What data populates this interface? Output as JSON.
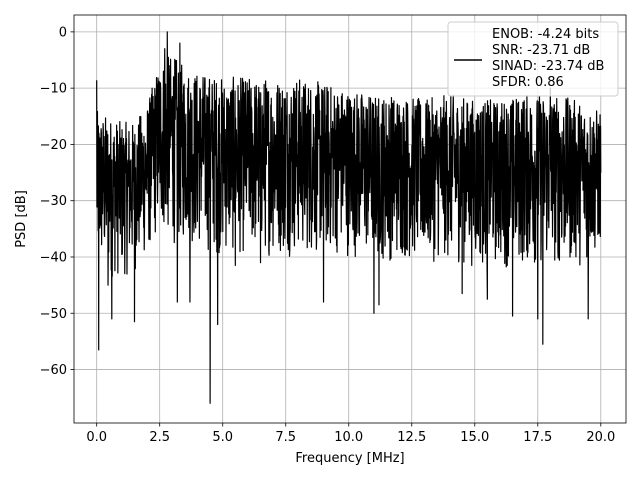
{
  "chart_data": {
    "type": "line",
    "xlabel": "Frequency [MHz]",
    "ylabel": "PSD [dB]",
    "xlim": [
      -0.9,
      21.0
    ],
    "ylim": [
      -69.5,
      3.0
    ],
    "xticks": [
      0.0,
      2.5,
      5.0,
      7.5,
      10.0,
      12.5,
      15.0,
      17.5,
      20.0
    ],
    "xtick_labels": [
      "0.0",
      "2.5",
      "5.0",
      "7.5",
      "10.0",
      "12.5",
      "15.0",
      "17.5",
      "20.0"
    ],
    "yticks": [
      0,
      -10,
      -20,
      -30,
      -40,
      -50,
      -60
    ],
    "ytick_labels": [
      "0",
      "−10",
      "−20",
      "−30",
      "−40",
      "−50",
      "−60"
    ],
    "grid": true,
    "legend_position": "top-right",
    "legend_lines": [
      "ENOB: -4.24 bits",
      "SNR: -23.71 dB",
      "SINAD: -23.74 dB",
      "SFDR: 0.86"
    ],
    "line_color": "#000000",
    "series": [
      {
        "name": "ENOB: -4.24 bits\nSNR: -23.71 dB\nSINAD: -23.74 dB\nSFDR: 0.86",
        "x_range": [
          0.0,
          20.0
        ],
        "approx_points": 2048,
        "notable_points": [
          {
            "x": 0.0,
            "y": -8.6
          },
          {
            "x": 0.08,
            "y": -56.5
          },
          {
            "x": 0.45,
            "y": -45.0
          },
          {
            "x": 0.6,
            "y": -51.0
          },
          {
            "x": 1.5,
            "y": -51.5
          },
          {
            "x": 2.7,
            "y": -3.0
          },
          {
            "x": 2.8,
            "y": 0.0
          },
          {
            "x": 3.3,
            "y": -2.0
          },
          {
            "x": 3.2,
            "y": -48.0
          },
          {
            "x": 3.7,
            "y": -48.0
          },
          {
            "x": 4.5,
            "y": -66.0
          },
          {
            "x": 4.8,
            "y": -52.0
          },
          {
            "x": 5.5,
            "y": -41.5
          },
          {
            "x": 6.5,
            "y": -41.0
          },
          {
            "x": 9.0,
            "y": -48.0
          },
          {
            "x": 11.0,
            "y": -50.0
          },
          {
            "x": 11.2,
            "y": -48.5
          },
          {
            "x": 14.5,
            "y": -46.5
          },
          {
            "x": 15.5,
            "y": -47.5
          },
          {
            "x": 16.5,
            "y": -50.5
          },
          {
            "x": 17.5,
            "y": -51.0
          },
          {
            "x": 17.7,
            "y": -55.5
          },
          {
            "x": 19.5,
            "y": -51.0
          },
          {
            "x": 18.0,
            "y": -10.0
          },
          {
            "x": 20.0,
            "y": -25.0
          }
        ],
        "envelope": [
          {
            "x": 0.0,
            "upper": -14,
            "lower": -43
          },
          {
            "x": 0.5,
            "upper": -15,
            "lower": -44
          },
          {
            "x": 1.0,
            "upper": -16,
            "lower": -44
          },
          {
            "x": 1.5,
            "upper": -16,
            "lower": -43
          },
          {
            "x": 2.0,
            "upper": -13,
            "lower": -40
          },
          {
            "x": 2.5,
            "upper": -5,
            "lower": -36
          },
          {
            "x": 3.0,
            "upper": -4,
            "lower": -38
          },
          {
            "x": 3.5,
            "upper": -6,
            "lower": -38
          },
          {
            "x": 4.0,
            "upper": -7,
            "lower": -39
          },
          {
            "x": 5.0,
            "upper": -8,
            "lower": -40
          },
          {
            "x": 6.0,
            "upper": -8,
            "lower": -40
          },
          {
            "x": 7.0,
            "upper": -8,
            "lower": -40
          },
          {
            "x": 8.0,
            "upper": -8,
            "lower": -40
          },
          {
            "x": 9.0,
            "upper": -9,
            "lower": -40
          },
          {
            "x": 10.0,
            "upper": -10,
            "lower": -40
          },
          {
            "x": 11.0,
            "upper": -11,
            "lower": -41
          },
          {
            "x": 12.0,
            "upper": -11,
            "lower": -41
          },
          {
            "x": 13.0,
            "upper": -12,
            "lower": -41
          },
          {
            "x": 14.0,
            "upper": -11,
            "lower": -41
          },
          {
            "x": 15.0,
            "upper": -12,
            "lower": -42
          },
          {
            "x": 16.0,
            "upper": -12,
            "lower": -42
          },
          {
            "x": 17.0,
            "upper": -11,
            "lower": -42
          },
          {
            "x": 18.0,
            "upper": -11,
            "lower": -42
          },
          {
            "x": 19.0,
            "upper": -12,
            "lower": -42
          },
          {
            "x": 20.0,
            "upper": -14,
            "lower": -40
          }
        ]
      }
    ]
  }
}
